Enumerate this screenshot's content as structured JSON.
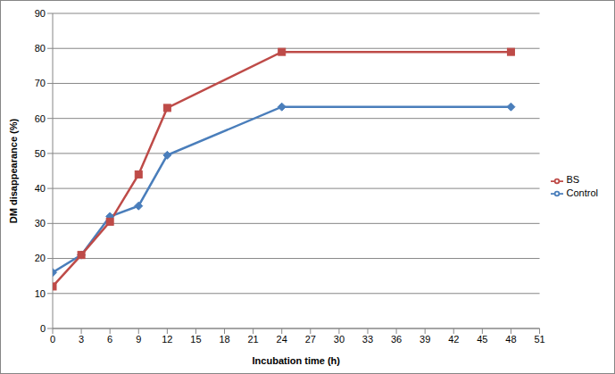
{
  "chart_data": {
    "type": "line",
    "x_label": "Incubation time (h)",
    "y_label": "DM disappearance (%)",
    "x": [
      0,
      3,
      6,
      9,
      12,
      24,
      48
    ],
    "series": [
      {
        "name": "Control",
        "color": "#4a7ebb",
        "marker": "diamond",
        "values": [
          16,
          21,
          32,
          35,
          49.5,
          63.3,
          63.3
        ]
      },
      {
        "name": "BS",
        "color": "#be4b48",
        "marker": "square",
        "values": [
          12,
          21,
          30.5,
          44,
          63,
          79,
          79
        ]
      }
    ],
    "xlim": [
      0,
      51
    ],
    "xticks": [
      0,
      3,
      6,
      9,
      12,
      15,
      18,
      21,
      24,
      27,
      30,
      33,
      36,
      39,
      42,
      45,
      48,
      51
    ],
    "ylim": [
      0,
      90
    ],
    "yticks": [
      0,
      10,
      20,
      30,
      40,
      50,
      60,
      70,
      80,
      90
    ],
    "grid": true,
    "legend": "right"
  }
}
